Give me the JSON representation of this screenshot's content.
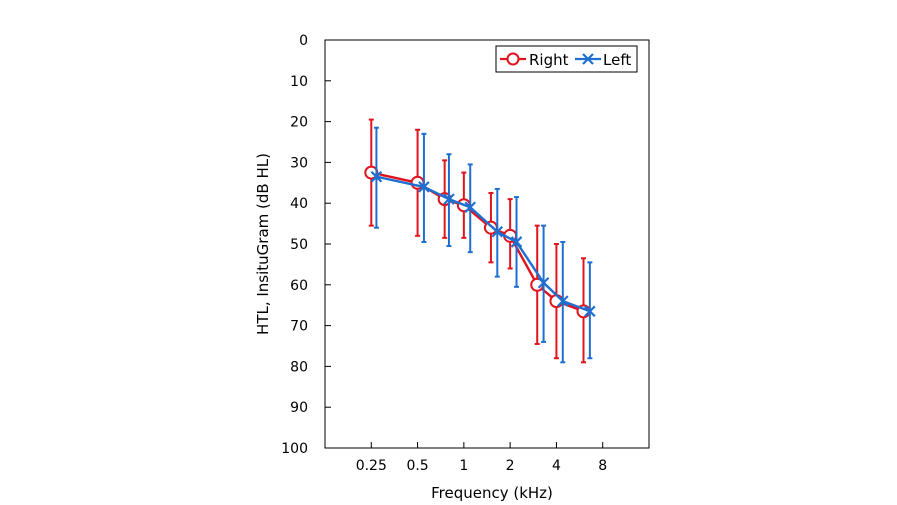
{
  "chart_data": {
    "type": "scatter",
    "title": "",
    "xlabel": "Frequency (kHz)",
    "ylabel": "HTL, InsituGram (dB HL)",
    "x_scale": "log2",
    "x_ticks": [
      0.25,
      0.5,
      1,
      2,
      4,
      8
    ],
    "x_tick_labels": [
      "0.25",
      "0.5",
      "1",
      "2",
      "4",
      "8"
    ],
    "xlim": [
      0.125,
      16
    ],
    "ylim": [
      0,
      100
    ],
    "y_inverted": true,
    "y_ticks": [
      0,
      10,
      20,
      30,
      40,
      50,
      60,
      70,
      80,
      90,
      100
    ],
    "y_tick_labels": [
      "0",
      "10",
      "20",
      "30",
      "40",
      "50",
      "60",
      "70",
      "80",
      "90",
      "100"
    ],
    "grid": false,
    "legend": "top-right",
    "series": [
      {
        "name": "Right",
        "color": "#e0141e",
        "marker": "circle",
        "x": [
          0.25,
          0.5,
          0.75,
          1,
          1.5,
          2,
          3,
          4,
          6
        ],
        "y": [
          32.5,
          35,
          39,
          40.5,
          46,
          48,
          60,
          64,
          66.5
        ],
        "err_low": [
          19.5,
          22,
          29.5,
          32.5,
          37.5,
          39,
          45.5,
          50,
          53.5
        ],
        "err_high": [
          45.5,
          48,
          48.5,
          48.5,
          54.5,
          56,
          74.5,
          78,
          79
        ]
      },
      {
        "name": "Left",
        "color": "#1f6fd0",
        "marker": "x",
        "x": [
          0.27,
          0.55,
          0.8,
          1.1,
          1.65,
          2.2,
          3.3,
          4.4,
          6.6
        ],
        "y": [
          33.5,
          36,
          39,
          41,
          47,
          49.5,
          59.5,
          64,
          66.5
        ],
        "err_low": [
          21.5,
          23,
          28,
          30.5,
          36.5,
          38.5,
          45.5,
          49.5,
          54.5
        ],
        "err_high": [
          46,
          49.5,
          50.5,
          52,
          58,
          60.5,
          74,
          79,
          78
        ]
      }
    ]
  }
}
